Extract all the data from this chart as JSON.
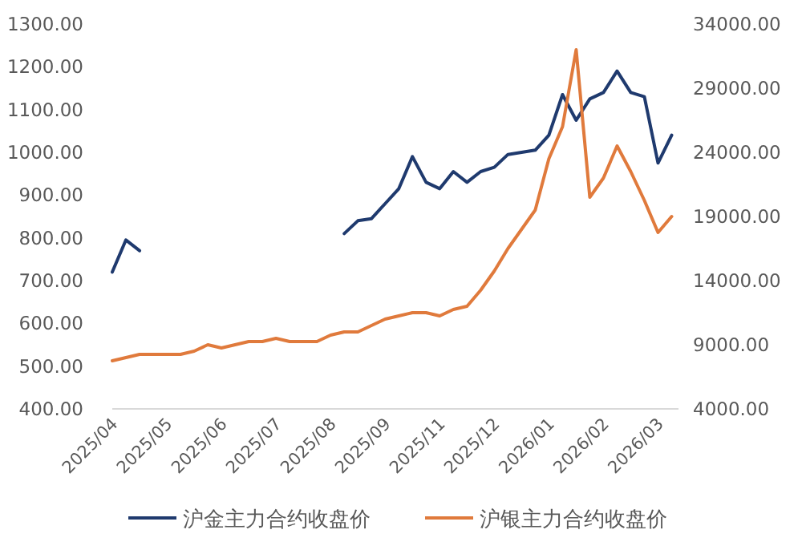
{
  "chart_data": {
    "type": "line",
    "grid": false,
    "legend": "bottom",
    "marker": "none",
    "line_style": "solid",
    "categories": [
      "2025/04",
      null,
      null,
      null,
      "2025/05",
      null,
      null,
      null,
      "2025/06",
      null,
      null,
      null,
      "2025/07",
      null,
      null,
      null,
      "2025/08",
      null,
      null,
      null,
      "2025/09",
      null,
      null,
      null,
      "2025/11",
      null,
      null,
      null,
      "2025/12",
      null,
      null,
      null,
      "2026/01",
      null,
      null,
      null,
      "2026/02",
      null,
      null,
      null,
      "2026/03",
      null
    ],
    "ylim": [
      400,
      1300
    ],
    "yticks": [
      {
        "value": 400,
        "label": "400.00"
      },
      {
        "value": 500,
        "label": "500.00"
      },
      {
        "value": 600,
        "label": "600.00"
      },
      {
        "value": 700,
        "label": "700.00"
      },
      {
        "value": 800,
        "label": "800.00"
      },
      {
        "value": 900,
        "label": "900.00"
      },
      {
        "value": 1000,
        "label": "1000.00"
      },
      {
        "value": 1100,
        "label": "1100.00"
      },
      {
        "value": 1200,
        "label": "1200.00"
      },
      {
        "value": 1300,
        "label": "1300.00"
      }
    ],
    "y2lim": [
      4000,
      34000
    ],
    "y2ticks": [
      {
        "value": 4000,
        "label": "4000.00"
      },
      {
        "value": 9000,
        "label": "9000.00"
      },
      {
        "value": 14000,
        "label": "14000.00"
      },
      {
        "value": 19000,
        "label": "19000.00"
      },
      {
        "value": 24000,
        "label": "24000.00"
      },
      {
        "value": 29000,
        "label": "29000.00"
      },
      {
        "value": 34000,
        "label": "34000.00"
      }
    ],
    "series": [
      {
        "name": "沪金主力合约收盘价",
        "color": "#1f3a6e",
        "values": [
          720,
          795,
          770,
          null,
          null,
          null,
          null,
          null,
          null,
          null,
          null,
          null,
          null,
          null,
          null,
          null,
          null,
          810,
          840,
          845,
          880,
          915,
          990,
          930,
          915,
          955,
          930,
          955,
          965,
          995,
          1000,
          1005,
          1040,
          1135,
          1075,
          1125,
          1140,
          1190,
          1140,
          1130,
          975,
          1040
        ]
      },
      {
        "name": "沪银主力合约收盘价",
        "color": "#e07a3c",
        "axis": "y2",
        "values": [
          7750,
          8000,
          8250,
          8250,
          8250,
          8250,
          8500,
          9000,
          8750,
          9000,
          9250,
          9250,
          9500,
          9250,
          9250,
          9250,
          9750,
          10000,
          10000,
          10500,
          11000,
          11250,
          11500,
          11500,
          11250,
          11750,
          12000,
          13250,
          14750,
          16500,
          18000,
          19500,
          23500,
          26000,
          32000,
          20500,
          22000,
          24500,
          22500,
          20250,
          17750,
          19000
        ]
      }
    ]
  }
}
